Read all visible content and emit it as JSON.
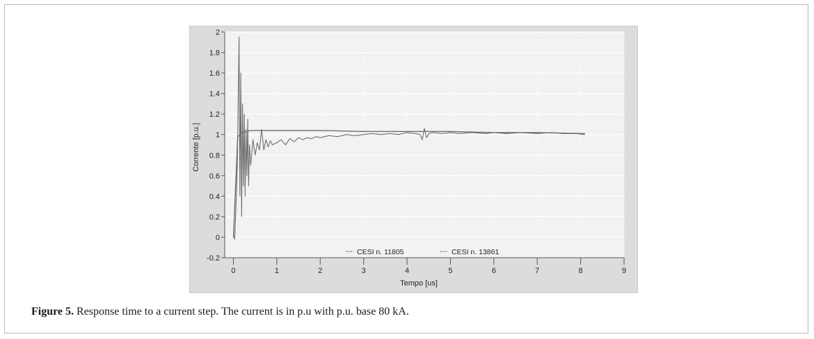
{
  "caption": {
    "label": "Figure 5.",
    "text": " Response time to a current step. The current is in p.u with p.u. base 80 kA."
  },
  "chart_data": {
    "type": "line",
    "xlabel": "Tempo [us]",
    "ylabel": "Corrente [p.u.]",
    "xlim": [
      -0.2,
      9.0
    ],
    "ylim": [
      -0.2,
      2.0
    ],
    "x_ticks": [
      0,
      1,
      2,
      3,
      4,
      5,
      6,
      7,
      8,
      9
    ],
    "y_ticks": [
      -0.2,
      0,
      0.2,
      0.4,
      0.6,
      0.8,
      1,
      1.2,
      1.4,
      1.6,
      1.8,
      2
    ],
    "grid": true,
    "legend_position": "bottom-center",
    "colors": {
      "plot_bg": "#f2f2f2",
      "frame_bg": "#dcdcdc",
      "line": "#6e6e6e",
      "grid": "#ffffff",
      "axis": "#555555"
    },
    "series": [
      {
        "name": "CESI n. 11805",
        "x": [
          0,
          0.03,
          0.06,
          0.09,
          0.11,
          0.13,
          0.15,
          0.17,
          0.19,
          0.21,
          0.23,
          0.25,
          0.27,
          0.29,
          0.31,
          0.33,
          0.35,
          0.37,
          0.4,
          0.45,
          0.5,
          0.55,
          0.6,
          0.65,
          0.7,
          0.75,
          0.8,
          0.85,
          0.9,
          1.0,
          1.1,
          1.2,
          1.3,
          1.4,
          1.5,
          1.6,
          1.7,
          1.8,
          1.9,
          2.0,
          2.2,
          2.4,
          2.6,
          2.8,
          3.0,
          3.2,
          3.4,
          3.6,
          3.8,
          4.0,
          4.2,
          4.3,
          4.35,
          4.4,
          4.45,
          4.5,
          4.6,
          4.8,
          5.0,
          5.2,
          5.5,
          5.8,
          6.0,
          6.3,
          6.6,
          7.0,
          7.3,
          7.6,
          7.9,
          8.1
        ],
        "y": [
          0.02,
          -0.02,
          0.3,
          0.7,
          1.3,
          1.95,
          0.4,
          1.6,
          0.2,
          1.3,
          0.5,
          1.2,
          0.4,
          1.05,
          0.6,
          1.15,
          0.5,
          0.9,
          0.7,
          0.95,
          0.8,
          0.92,
          0.85,
          1.05,
          0.85,
          0.95,
          0.88,
          0.94,
          0.9,
          0.92,
          0.95,
          0.9,
          0.96,
          0.93,
          0.97,
          0.95,
          0.97,
          0.96,
          0.98,
          0.97,
          0.99,
          0.98,
          1.0,
          0.99,
          1.0,
          1.01,
          1.0,
          1.01,
          1.0,
          1.02,
          1.01,
          1.0,
          0.95,
          1.06,
          0.97,
          1.01,
          1.02,
          1.01,
          1.02,
          1.01,
          1.02,
          1.01,
          1.02,
          1.01,
          1.02,
          1.01,
          1.02,
          1.01,
          1.01,
          1.0
        ]
      },
      {
        "name": "CESI n. 13861",
        "x": [
          0,
          0.1,
          0.2,
          0.3,
          0.4,
          0.6,
          0.8,
          1.0,
          1.5,
          2.0,
          3.0,
          4.0,
          5.0,
          6.0,
          7.0,
          8.1
        ],
        "y": [
          0,
          0.98,
          1.02,
          1.03,
          1.04,
          1.04,
          1.04,
          1.04,
          1.04,
          1.04,
          1.03,
          1.03,
          1.03,
          1.02,
          1.02,
          1.01
        ]
      }
    ]
  }
}
